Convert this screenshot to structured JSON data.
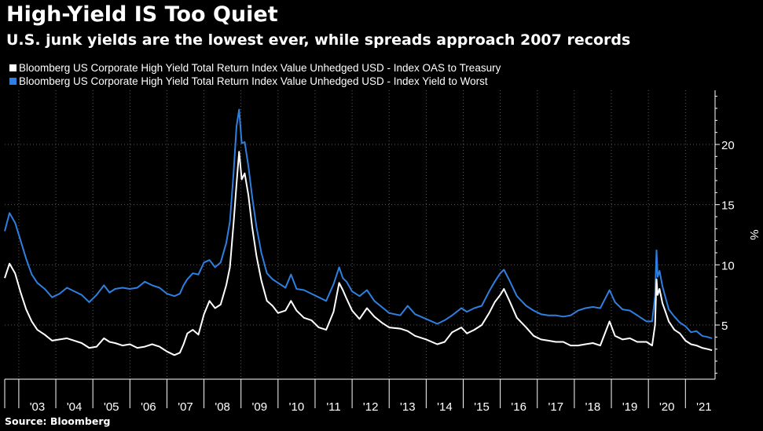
{
  "title": "High-Yield IS Too Quiet",
  "subtitle": "U.S. junk yields are the lowest ever, while spreads approach 2007 records",
  "source": "Source: Bloomberg",
  "colors": {
    "background": "#000000",
    "oas": "#ffffff",
    "ytw": "#2f7fe0",
    "grid": "#5a5a5a"
  },
  "chart_data": {
    "type": "line",
    "ylabel": "%",
    "ylim": [
      0.5,
      24.5
    ],
    "yticks": [
      5,
      10,
      15,
      20
    ],
    "xlim": [
      2002.62,
      2021.8
    ],
    "xticks": [
      {
        "label": "'03",
        "x": 2003.5
      },
      {
        "label": "'04",
        "x": 2004.5
      },
      {
        "label": "'05",
        "x": 2005.5
      },
      {
        "label": "'06",
        "x": 2006.5
      },
      {
        "label": "'07",
        "x": 2007.5
      },
      {
        "label": "'08",
        "x": 2008.5
      },
      {
        "label": "'09",
        "x": 2009.5
      },
      {
        "label": "'10",
        "x": 2010.5
      },
      {
        "label": "'11",
        "x": 2011.5
      },
      {
        "label": "'12",
        "x": 2012.5
      },
      {
        "label": "'13",
        "x": 2013.5
      },
      {
        "label": "'14",
        "x": 2014.5
      },
      {
        "label": "'15",
        "x": 2015.5
      },
      {
        "label": "'16",
        "x": 2016.5
      },
      {
        "label": "'17",
        "x": 2017.5
      },
      {
        "label": "'18",
        "x": 2018.5
      },
      {
        "label": "'19",
        "x": 2019.5
      },
      {
        "label": "'20",
        "x": 2020.5
      },
      {
        "label": "'21",
        "x": 2021.5
      }
    ],
    "grid": true,
    "legend_position": "top-left",
    "series": [
      {
        "name": "Bloomberg US Corporate High Yield Total Return Index Value Unhedged USD - Index OAS to Treasury",
        "color": "#ffffff",
        "x": [
          2002.62,
          2002.75,
          2002.9,
          2003.05,
          2003.2,
          2003.35,
          2003.5,
          2003.7,
          2003.9,
          2004.1,
          2004.3,
          2004.5,
          2004.7,
          2004.9,
          2005.1,
          2005.3,
          2005.45,
          2005.6,
          2005.8,
          2006.0,
          2006.2,
          2006.4,
          2006.6,
          2006.8,
          2007.0,
          2007.2,
          2007.35,
          2007.45,
          2007.55,
          2007.7,
          2007.85,
          2008.0,
          2008.15,
          2008.3,
          2008.45,
          2008.6,
          2008.7,
          2008.8,
          2008.88,
          2008.95,
          2009.02,
          2009.1,
          2009.2,
          2009.3,
          2009.42,
          2009.55,
          2009.7,
          2009.85,
          2010.0,
          2010.2,
          2010.35,
          2010.5,
          2010.7,
          2010.9,
          2011.1,
          2011.3,
          2011.5,
          2011.65,
          2011.75,
          2011.85,
          2012.0,
          2012.2,
          2012.4,
          2012.6,
          2012.8,
          2013.0,
          2013.3,
          2013.5,
          2013.7,
          2014.0,
          2014.3,
          2014.5,
          2014.7,
          2014.95,
          2015.1,
          2015.3,
          2015.5,
          2015.7,
          2015.85,
          2016.0,
          2016.1,
          2016.25,
          2016.45,
          2016.7,
          2016.9,
          2017.1,
          2017.3,
          2017.5,
          2017.7,
          2017.9,
          2018.1,
          2018.3,
          2018.5,
          2018.7,
          2018.95,
          2019.1,
          2019.3,
          2019.5,
          2019.7,
          2019.95,
          2020.1,
          2020.18,
          2020.22,
          2020.25,
          2020.3,
          2020.38,
          2020.45,
          2020.55,
          2020.7,
          2020.85,
          2021.0,
          2021.15,
          2021.3,
          2021.45,
          2021.6,
          2021.72
        ],
        "values": [
          8.9,
          10.1,
          9.3,
          7.7,
          6.3,
          5.3,
          4.6,
          4.2,
          3.7,
          3.8,
          3.9,
          3.7,
          3.5,
          3.1,
          3.2,
          3.9,
          3.6,
          3.5,
          3.3,
          3.4,
          3.1,
          3.2,
          3.4,
          3.2,
          2.8,
          2.5,
          2.7,
          3.4,
          4.3,
          4.6,
          4.2,
          5.9,
          7.0,
          6.4,
          6.7,
          8.3,
          9.8,
          13.5,
          16.7,
          19.4,
          17.1,
          17.6,
          15.8,
          13.2,
          10.7,
          8.7,
          7.0,
          6.6,
          6.0,
          6.2,
          7.0,
          6.2,
          5.6,
          5.4,
          4.8,
          4.6,
          6.1,
          8.5,
          7.9,
          7.2,
          6.2,
          5.5,
          6.4,
          5.7,
          5.2,
          4.8,
          4.7,
          4.5,
          4.1,
          3.8,
          3.4,
          3.6,
          4.4,
          4.8,
          4.3,
          4.6,
          5.0,
          6.0,
          6.9,
          7.5,
          8.0,
          7.0,
          5.6,
          4.8,
          4.1,
          3.8,
          3.7,
          3.6,
          3.6,
          3.3,
          3.3,
          3.4,
          3.5,
          3.3,
          5.3,
          4.1,
          3.8,
          3.9,
          3.6,
          3.6,
          3.3,
          5.0,
          8.8,
          7.5,
          8.0,
          6.8,
          6.2,
          5.3,
          4.6,
          4.3,
          3.7,
          3.4,
          3.3,
          3.1,
          3.0,
          2.9
        ]
      },
      {
        "name": "Bloomberg US Corporate High Yield Total Return Index Value Unhedged USD - Index Yield to Worst",
        "color": "#2f7fe0",
        "x": [
          2002.62,
          2002.75,
          2002.9,
          2003.05,
          2003.2,
          2003.35,
          2003.5,
          2003.7,
          2003.9,
          2004.1,
          2004.3,
          2004.5,
          2004.7,
          2004.9,
          2005.1,
          2005.3,
          2005.45,
          2005.6,
          2005.8,
          2006.0,
          2006.2,
          2006.4,
          2006.6,
          2006.8,
          2007.0,
          2007.2,
          2007.35,
          2007.45,
          2007.55,
          2007.7,
          2007.85,
          2008.0,
          2008.15,
          2008.3,
          2008.45,
          2008.6,
          2008.7,
          2008.8,
          2008.88,
          2008.95,
          2009.02,
          2009.1,
          2009.2,
          2009.3,
          2009.42,
          2009.55,
          2009.7,
          2009.85,
          2010.0,
          2010.2,
          2010.35,
          2010.5,
          2010.7,
          2010.9,
          2011.1,
          2011.3,
          2011.5,
          2011.65,
          2011.75,
          2011.85,
          2012.0,
          2012.2,
          2012.4,
          2012.6,
          2012.8,
          2013.0,
          2013.3,
          2013.5,
          2013.7,
          2014.0,
          2014.3,
          2014.5,
          2014.7,
          2014.95,
          2015.1,
          2015.3,
          2015.5,
          2015.7,
          2015.85,
          2016.0,
          2016.1,
          2016.25,
          2016.45,
          2016.7,
          2016.9,
          2017.1,
          2017.3,
          2017.5,
          2017.7,
          2017.9,
          2018.1,
          2018.3,
          2018.5,
          2018.7,
          2018.95,
          2019.1,
          2019.3,
          2019.5,
          2019.7,
          2019.95,
          2020.1,
          2020.18,
          2020.22,
          2020.25,
          2020.3,
          2020.38,
          2020.45,
          2020.55,
          2020.7,
          2020.85,
          2021.0,
          2021.15,
          2021.3,
          2021.45,
          2021.6,
          2021.72
        ],
        "values": [
          12.8,
          14.3,
          13.5,
          12.0,
          10.5,
          9.2,
          8.5,
          8.0,
          7.3,
          7.6,
          8.1,
          7.8,
          7.5,
          6.9,
          7.5,
          8.3,
          7.7,
          8.0,
          8.1,
          8.0,
          8.1,
          8.6,
          8.3,
          8.1,
          7.6,
          7.4,
          7.6,
          8.3,
          8.8,
          9.3,
          9.2,
          10.2,
          10.4,
          9.8,
          10.2,
          11.8,
          13.6,
          17.7,
          21.5,
          22.9,
          20.1,
          20.2,
          18.2,
          15.7,
          13.1,
          11.0,
          9.3,
          8.8,
          8.5,
          8.1,
          9.2,
          8.0,
          7.9,
          7.6,
          7.3,
          7.0,
          8.4,
          9.8,
          8.9,
          8.6,
          7.8,
          7.4,
          7.9,
          7.0,
          6.5,
          6.0,
          5.8,
          6.6,
          5.9,
          5.5,
          5.1,
          5.4,
          5.8,
          6.4,
          6.1,
          6.4,
          6.6,
          7.8,
          8.6,
          9.3,
          9.6,
          8.7,
          7.4,
          6.6,
          6.2,
          5.9,
          5.8,
          5.8,
          5.7,
          5.8,
          6.2,
          6.4,
          6.5,
          6.4,
          7.9,
          6.9,
          6.3,
          6.2,
          5.8,
          5.3,
          5.3,
          7.4,
          11.2,
          9.0,
          9.5,
          8.2,
          7.4,
          6.3,
          5.7,
          5.2,
          4.9,
          4.4,
          4.5,
          4.1,
          4.0,
          3.9
        ]
      }
    ]
  }
}
